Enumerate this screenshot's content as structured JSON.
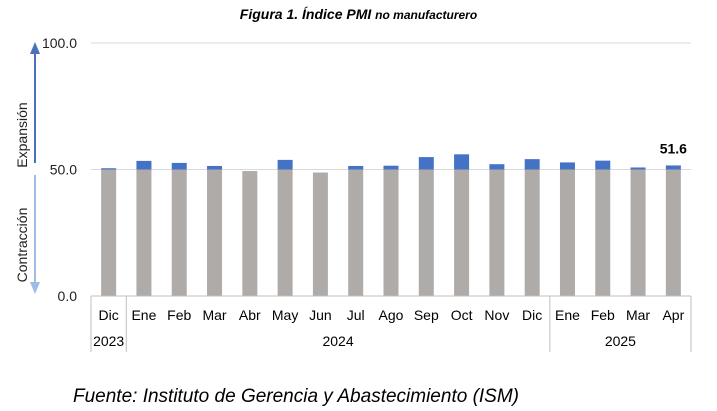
{
  "title": {
    "prefix": "Figura 1.",
    "main": "Índice PMI",
    "suffix": "no manufacturero"
  },
  "source": "Fuente: Instituto de Gerencia y Abastecimiento (ISM)",
  "axis_annotations": {
    "expansion": "Expansión",
    "contraction": "Contracción"
  },
  "colors": {
    "base_bar": "#afaba8",
    "above_50": "#4472c4",
    "arrow_up": "#4a72b8",
    "arrow_down": "#9dbde6",
    "grid": "#d9d9d9"
  },
  "chart_data": {
    "type": "bar",
    "title": "Figura 1. Índice PMI no manufacturero",
    "categories": [
      "Dic",
      "Ene",
      "Feb",
      "Mar",
      "Abr",
      "May",
      "Jun",
      "Jul",
      "Ago",
      "Sep",
      "Oct",
      "Nov",
      "Dic",
      "Ene",
      "Feb",
      "Mar",
      "Apr"
    ],
    "year_groups": [
      {
        "label": "2023",
        "count": 1
      },
      {
        "label": "2024",
        "count": 12
      },
      {
        "label": "2025",
        "count": 4
      }
    ],
    "values": [
      50.5,
      53.4,
      52.6,
      51.4,
      49.4,
      53.8,
      48.8,
      51.4,
      51.5,
      54.9,
      56.0,
      52.1,
      54.1,
      52.8,
      53.5,
      50.8,
      51.6
    ],
    "reference": 50,
    "ylim": [
      0,
      100
    ],
    "yticks": [
      "0.0",
      "50.0",
      "100.0"
    ],
    "data_labels": [
      {
        "index": 16,
        "text": "51.6"
      }
    ],
    "grid": true,
    "legend": "none"
  }
}
